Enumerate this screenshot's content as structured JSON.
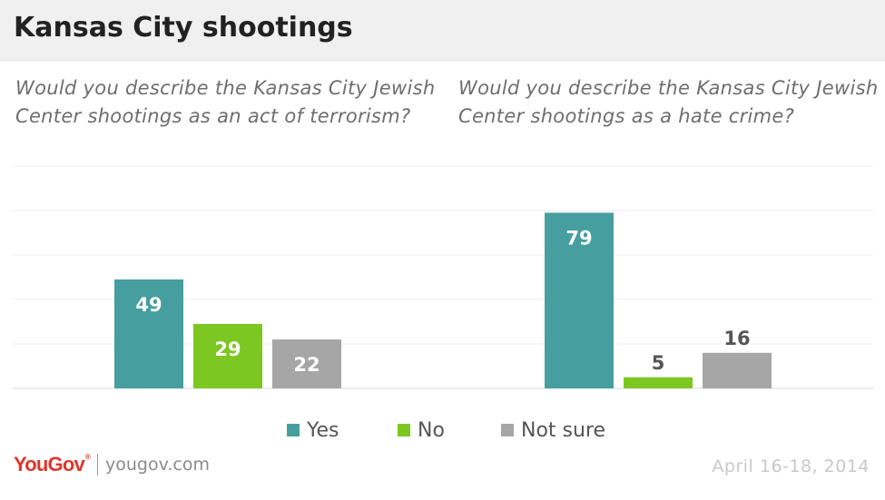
{
  "header": {
    "title": "Kansas City shootings"
  },
  "colors": {
    "Yes": "#469e9f",
    "No": "#7dc722",
    "Not sure": "#a6a6a6"
  },
  "legend": {
    "items": [
      {
        "label": "Yes",
        "color": "#469e9f"
      },
      {
        "label": "No",
        "color": "#7dc722"
      },
      {
        "label": "Not sure",
        "color": "#a6a6a6"
      }
    ]
  },
  "chart_data": [
    {
      "type": "bar",
      "title": "Would you describe the Kansas City Jewish Center shootings as an act of terrorism?",
      "categories": [
        "Yes",
        "No",
        "Not sure"
      ],
      "values": [
        49,
        29,
        22
      ],
      "ylim": [
        0,
        100
      ],
      "grid": true,
      "legend": "bottom"
    },
    {
      "type": "bar",
      "title": "Would you describe the Kansas City Jewish Center shootings as a hate crime?",
      "categories": [
        "Yes",
        "No",
        "Not sure"
      ],
      "values": [
        79,
        5,
        16
      ],
      "ylim": [
        0,
        100
      ],
      "grid": true,
      "legend": "bottom"
    }
  ],
  "footer": {
    "logo_you": "YouGov",
    "site": "yougov.com",
    "date": "April 16-18, 2014"
  }
}
